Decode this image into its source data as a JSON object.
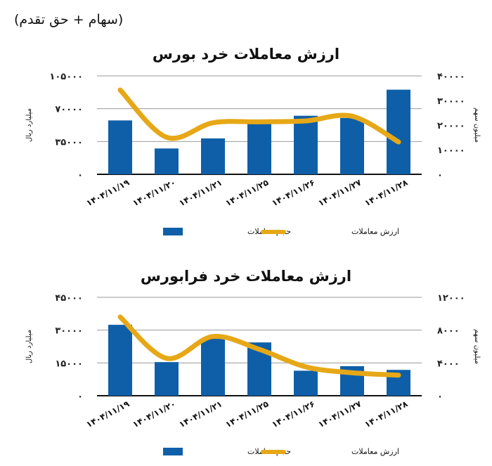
{
  "header": "(سهام + حق تقدم)",
  "colors": {
    "bars": "#0f5fa8",
    "line": "#e6a817",
    "grid": "#999999"
  },
  "chart_data": [
    {
      "type": "bar+line",
      "title": "ارزش معاملات خرد بورس",
      "categories": [
        "۱۴۰۴/۱۱/۱۹",
        "۱۴۰۴/۱۱/۲۰",
        "۱۴۰۴/۱۱/۲۱",
        "۱۴۰۴/۱۱/۲۵",
        "۱۴۰۴/۱۱/۲۶",
        "۱۴۰۴/۱۱/۲۷",
        "۱۴۰۴/۱۱/۲۸"
      ],
      "left_axis": {
        "label": "میلیارد ریال",
        "ylim": [
          0,
          105000
        ],
        "ticks": [
          0,
          35000,
          70000,
          105000
        ],
        "tick_labels": [
          "۰",
          "۳۵۰۰۰",
          "۷۰۰۰۰",
          "۱۰۵۰۰۰"
        ]
      },
      "right_axis": {
        "label": "میلیون سهم",
        "ylim": [
          0,
          40000
        ],
        "ticks": [
          0,
          10000,
          20000,
          30000,
          40000
        ],
        "tick_labels": [
          "۰",
          "۱۰۰۰۰",
          "۲۰۰۰۰",
          "۳۰۰۰۰",
          "۴۰۰۰۰"
        ]
      },
      "grid": true,
      "legend_position": "bottom",
      "series": [
        {
          "name": "حجم معاملات",
          "kind": "bar",
          "axis": "right",
          "values": [
            21900,
            10500,
            14600,
            21200,
            23800,
            22900,
            34400
          ]
        },
        {
          "name": "ارزش معاملات",
          "kind": "line",
          "axis": "left",
          "values": [
            90000,
            39500,
            55000,
            56000,
            57000,
            62000,
            34500
          ]
        }
      ]
    },
    {
      "type": "bar+line",
      "title": "ارزش معاملات خرد فرابورس",
      "categories": [
        "۱۴۰۴/۱۱/۱۹",
        "۱۴۰۴/۱۱/۲۰",
        "۱۴۰۴/۱۱/۲۱",
        "۱۴۰۴/۱۱/۲۵",
        "۱۴۰۴/۱۱/۲۶",
        "۱۴۰۴/۱۱/۲۷",
        "۱۴۰۴/۱۱/۲۸"
      ],
      "left_axis": {
        "label": "میلیارد ریال",
        "ylim": [
          0,
          45000
        ],
        "ticks": [
          0,
          15000,
          30000,
          45000
        ],
        "tick_labels": [
          "۰",
          "۱۵۰۰۰",
          "۳۰۰۰۰",
          "۴۵۰۰۰"
        ]
      },
      "right_axis": {
        "label": "میلیون سهم",
        "ylim": [
          0,
          12000
        ],
        "ticks": [
          0,
          4000,
          8000,
          12000
        ],
        "tick_labels": [
          "۰",
          "۴۰۰۰",
          "۸۰۰۰",
          "۱۲۰۰۰"
        ]
      },
      "grid": true,
      "legend_position": "bottom",
      "series": [
        {
          "name": "حجم معاملات",
          "kind": "bar",
          "axis": "right",
          "values": [
            8650,
            4100,
            6950,
            6500,
            3050,
            3600,
            3150
          ]
        },
        {
          "name": "ارزش معاملات",
          "kind": "line",
          "axis": "left",
          "values": [
            36000,
            17100,
            27100,
            21200,
            13200,
            10500,
            9400
          ]
        }
      ]
    }
  ]
}
